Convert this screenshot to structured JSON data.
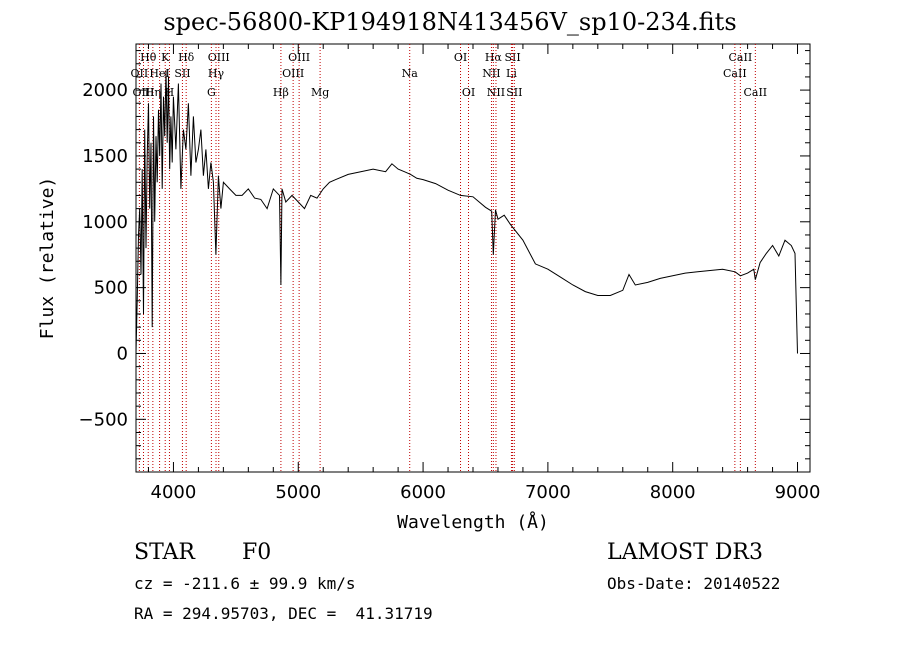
{
  "header": {
    "title": "spec-56800-KP194918N413456V_sp10-234.fits"
  },
  "info": {
    "class": "STAR",
    "subclass": "F0",
    "survey": "LAMOST DR3",
    "cz": "cz = -211.6 ± 99.9 km/s",
    "obs_date": "Obs-Date: 20140522",
    "radec": "RA = 294.95703, DEC =  41.31719"
  },
  "colors": {
    "axis": "#000000",
    "spectrum": "#000000",
    "line_marker": "#c00000",
    "background": "#ffffff"
  },
  "chart_data": {
    "type": "line",
    "title": "spec-56800-KP194918N413456V_sp10-234.fits",
    "xlabel": "Wavelength (Å)",
    "ylabel": "Flux (relative)",
    "xlim": [
      3700,
      9100
    ],
    "ylim": [
      -900,
      2350
    ],
    "x_ticks": [
      4000,
      5000,
      6000,
      7000,
      8000,
      9000
    ],
    "y_ticks": [
      -500,
      0,
      500,
      1000,
      1500,
      2000
    ],
    "x_tick_labels": [
      "4000",
      "5000",
      "6000",
      "7000",
      "8000",
      "9000"
    ],
    "y_tick_labels": [
      "−500",
      "0",
      "500",
      "1000",
      "1500",
      "2000"
    ],
    "series": [
      {
        "name": "flux",
        "x": [
          3700,
          3710,
          3720,
          3730,
          3740,
          3750,
          3760,
          3770,
          3780,
          3790,
          3800,
          3810,
          3820,
          3830,
          3840,
          3850,
          3860,
          3870,
          3880,
          3890,
          3900,
          3910,
          3920,
          3930,
          3940,
          3950,
          3960,
          3970,
          3980,
          3990,
          4000,
          4020,
          4040,
          4060,
          4080,
          4100,
          4120,
          4140,
          4160,
          4180,
          4200,
          4220,
          4240,
          4260,
          4280,
          4300,
          4320,
          4340,
          4360,
          4380,
          4400,
          4450,
          4500,
          4550,
          4600,
          4650,
          4700,
          4750,
          4800,
          4850,
          4861,
          4870,
          4900,
          4950,
          5000,
          5050,
          5100,
          5150,
          5200,
          5250,
          5300,
          5400,
          5500,
          5600,
          5700,
          5750,
          5800,
          5850,
          5900,
          5950,
          6000,
          6100,
          6200,
          6300,
          6400,
          6500,
          6550,
          6563,
          6580,
          6600,
          6650,
          6700,
          6800,
          6900,
          7000,
          7100,
          7200,
          7300,
          7400,
          7500,
          7600,
          7650,
          7700,
          7800,
          7900,
          8000,
          8100,
          8200,
          8300,
          8400,
          8500,
          8542,
          8600,
          8650,
          8662,
          8700,
          8750,
          8800,
          8850,
          8900,
          8950,
          8980,
          9000
        ],
        "values": [
          0,
          400,
          900,
          1100,
          600,
          1400,
          300,
          1700,
          800,
          1500,
          1900,
          1100,
          1600,
          200,
          1800,
          1000,
          1650,
          1300,
          1850,
          1500,
          2050,
          1250,
          1950,
          1650,
          2150,
          1600,
          2100,
          1400,
          1800,
          1450,
          1950,
          1550,
          2050,
          1250,
          1700,
          1550,
          1900,
          1350,
          1800,
          1450,
          1550,
          1700,
          1350,
          1550,
          1250,
          1450,
          1300,
          750,
          1350,
          1100,
          1300,
          1250,
          1200,
          1200,
          1250,
          1180,
          1170,
          1100,
          1250,
          1200,
          520,
          1250,
          1150,
          1200,
          1150,
          1100,
          1200,
          1180,
          1250,
          1300,
          1320,
          1360,
          1380,
          1400,
          1380,
          1440,
          1400,
          1380,
          1360,
          1330,
          1320,
          1290,
          1240,
          1200,
          1190,
          1110,
          1080,
          750,
          1090,
          1020,
          1050,
          980,
          860,
          680,
          640,
          580,
          520,
          470,
          440,
          440,
          480,
          600,
          520,
          540,
          570,
          590,
          610,
          620,
          630,
          640,
          620,
          590,
          610,
          640,
          560,
          690,
          760,
          820,
          740,
          860,
          820,
          760,
          0
        ]
      }
    ],
    "line_markers": [
      {
        "label": "Hθ",
        "x": 3798,
        "row": 0
      },
      {
        "label": "OII",
        "x": 3727,
        "row": 1
      },
      {
        "label": "OIII",
        "x": 3760,
        "row": 2
      },
      {
        "label": "Hη",
        "x": 3835,
        "row": 2
      },
      {
        "label": "HeI",
        "x": 3889,
        "row": 1
      },
      {
        "label": "K",
        "x": 3934,
        "row": 0
      },
      {
        "label": "H",
        "x": 3968,
        "row": 2
      },
      {
        "label": "SII",
        "x": 4072,
        "row": 1
      },
      {
        "label": "Hδ",
        "x": 4102,
        "row": 0
      },
      {
        "label": "OIII",
        "x": 4363,
        "row": 0
      },
      {
        "label": "Hγ",
        "x": 4341,
        "row": 1
      },
      {
        "label": "G",
        "x": 4304,
        "row": 2
      },
      {
        "label": "Hβ",
        "x": 4861,
        "row": 2
      },
      {
        "label": "OIII",
        "x": 5007,
        "row": 0
      },
      {
        "label": "OIII",
        "x": 4959,
        "row": 1
      },
      {
        "label": "Mg",
        "x": 5175,
        "row": 2
      },
      {
        "label": "Na",
        "x": 5893,
        "row": 1
      },
      {
        "label": "OI",
        "x": 6300,
        "row": 0
      },
      {
        "label": "OI",
        "x": 6364,
        "row": 2
      },
      {
        "label": "Hα",
        "x": 6563,
        "row": 0
      },
      {
        "label": "NII",
        "x": 6548,
        "row": 1
      },
      {
        "label": "NII",
        "x": 6584,
        "row": 2
      },
      {
        "label": "SII",
        "x": 6717,
        "row": 0
      },
      {
        "label": "Li",
        "x": 6708,
        "row": 1
      },
      {
        "label": "SII",
        "x": 6731,
        "row": 2
      },
      {
        "label": "CaII",
        "x": 8542,
        "row": 0
      },
      {
        "label": "CaII",
        "x": 8498,
        "row": 1
      },
      {
        "label": "CaII",
        "x": 8662,
        "row": 2
      }
    ]
  }
}
